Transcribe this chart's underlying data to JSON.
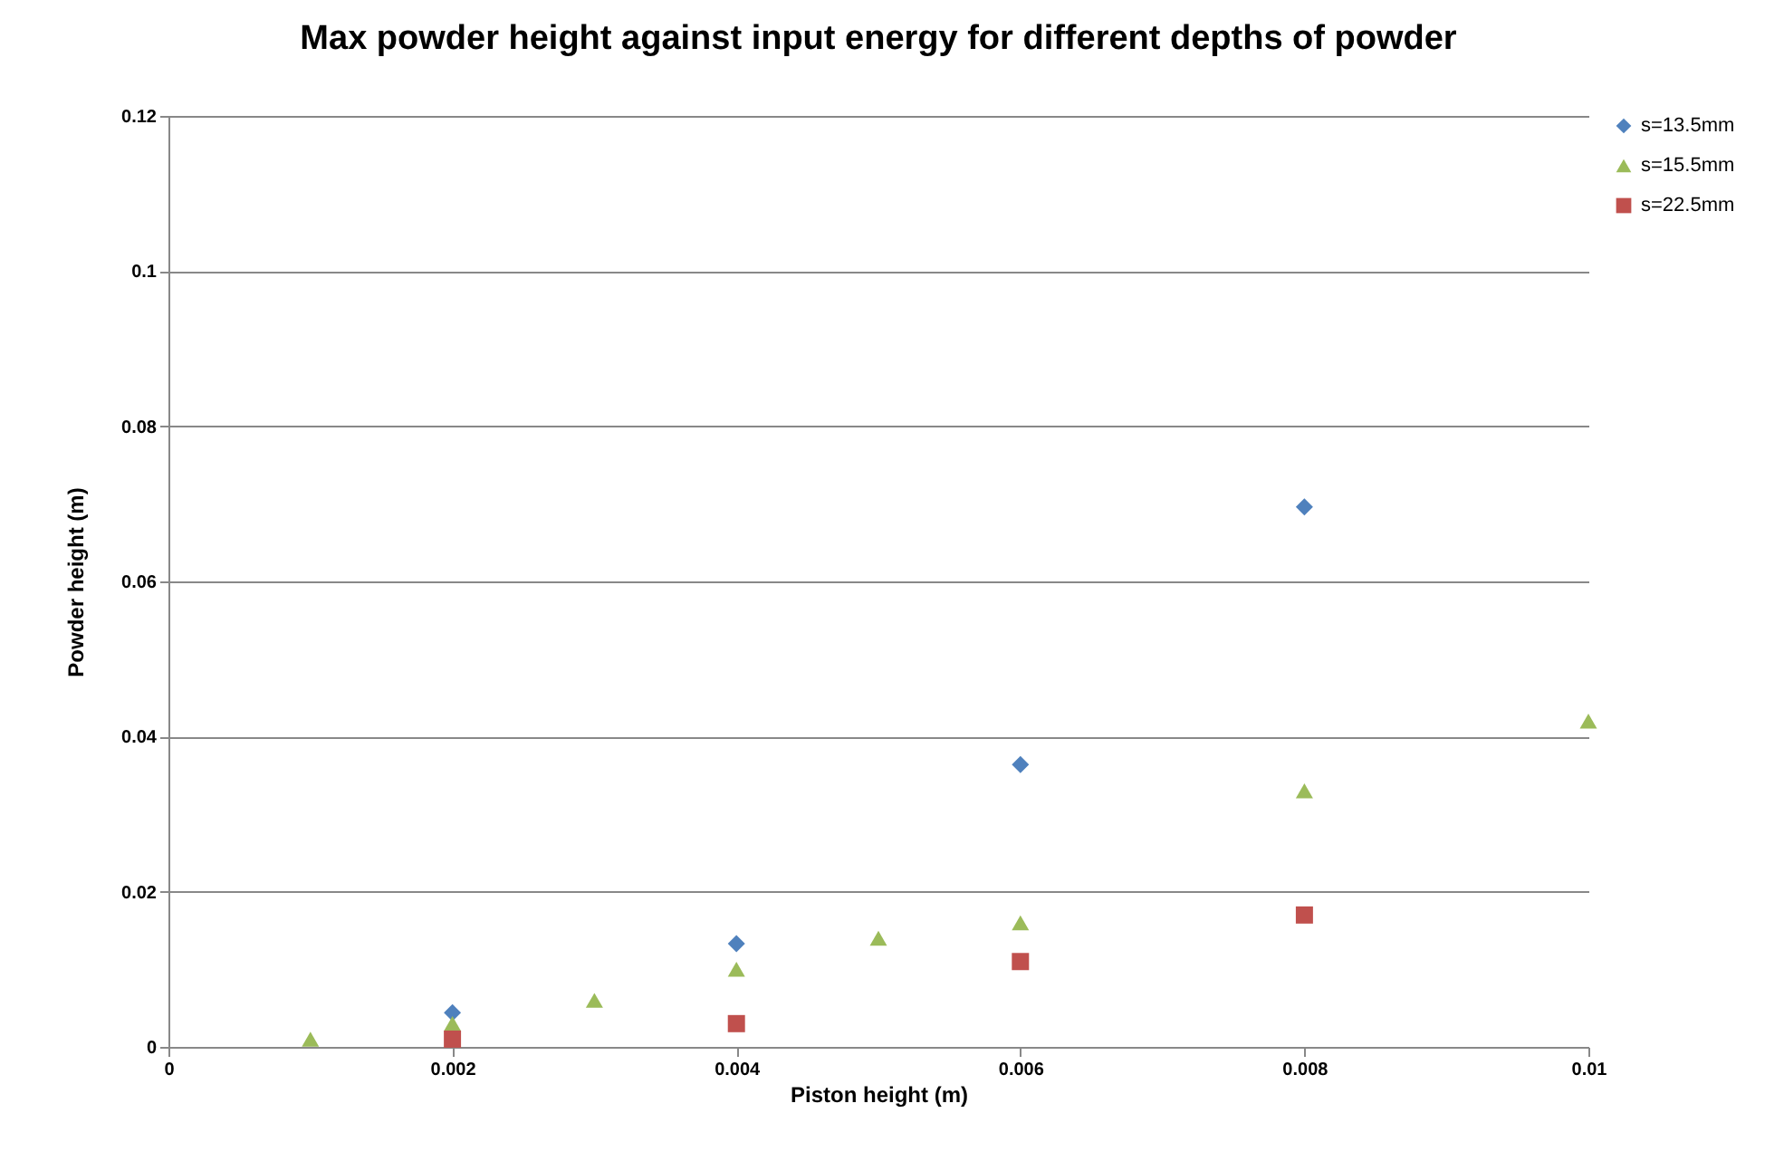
{
  "chart_data": {
    "type": "scatter",
    "title": "Max powder height against input energy for different depths of powder",
    "xlabel": "Piston height (m)",
    "ylabel": "Powder height (m)",
    "xlim": [
      0,
      0.01
    ],
    "xticks": [
      0,
      0.002,
      0.004,
      0.006,
      0.008,
      0.01
    ],
    "ylim": [
      0,
      0.12
    ],
    "yticks": [
      0,
      0.02,
      0.04,
      0.06,
      0.08,
      0.1,
      0.12
    ],
    "grid": "y",
    "legend": "right",
    "series": [
      {
        "name": "s=13.5mm",
        "color": "#4f81bd",
        "marker": "diamond",
        "x": [
          0.002,
          0.004,
          0.006,
          0.008
        ],
        "values": [
          0.0044,
          0.0133,
          0.0364,
          0.0696
        ]
      },
      {
        "name": "s=15.5mm",
        "color": "#9bbb59",
        "marker": "triangle",
        "x": [
          0.001,
          0.002,
          0.003,
          0.004,
          0.005,
          0.006,
          0.008,
          0.01
        ],
        "values": [
          0.001,
          0.003,
          0.006,
          0.01,
          0.014,
          0.016,
          0.033,
          0.042
        ]
      },
      {
        "name": "s=22.5mm",
        "color": "#c0504d",
        "marker": "square",
        "x": [
          0.002,
          0.004,
          0.006,
          0.008
        ],
        "values": [
          0.001,
          0.003,
          0.011,
          0.017
        ]
      }
    ]
  }
}
